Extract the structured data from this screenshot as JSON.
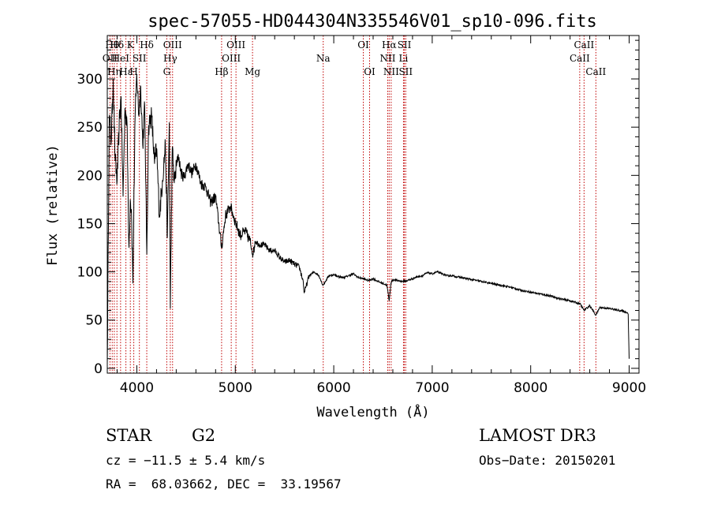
{
  "chart_data": {
    "type": "line",
    "title": "spec-57055-HD044304N335546V01_sp10-096.fits",
    "xlabel": "Wavelength (Å)",
    "ylabel": "Flux (relative)",
    "xlim": [
      3700,
      9100
    ],
    "ylim": [
      -5,
      345
    ],
    "xticks": [
      4000,
      5000,
      6000,
      7000,
      8000,
      9000
    ],
    "yticks": [
      0,
      50,
      100,
      150,
      200,
      250,
      300
    ],
    "grid": false,
    "series": [
      {
        "name": "Flux",
        "x": [
          3700,
          3720,
          3740,
          3760,
          3780,
          3800,
          3820,
          3840,
          3860,
          3880,
          3900,
          3920,
          3933,
          3945,
          3960,
          3968,
          3980,
          4000,
          4020,
          4040,
          4060,
          4080,
          4101,
          4120,
          4150,
          4180,
          4200,
          4230,
          4260,
          4290,
          4310,
          4330,
          4340,
          4360,
          4380,
          4420,
          4450,
          4480,
          4520,
          4560,
          4600,
          4650,
          4700,
          4750,
          4800,
          4861,
          4900,
          4950,
          5000,
          5050,
          5100,
          5150,
          5183,
          5200,
          5250,
          5300,
          5350,
          5400,
          5450,
          5500,
          5550,
          5600,
          5650,
          5690,
          5700,
          5720,
          5750,
          5800,
          5850,
          5890,
          5950,
          6000,
          6050,
          6100,
          6150,
          6200,
          6250,
          6300,
          6350,
          6400,
          6450,
          6500,
          6540,
          6563,
          6580,
          6600,
          6650,
          6700,
          6750,
          6800,
          6850,
          6900,
          6950,
          7000,
          7050,
          7100,
          7150,
          7200,
          7300,
          7400,
          7500,
          7600,
          7700,
          7800,
          7900,
          8000,
          8100,
          8200,
          8300,
          8400,
          8500,
          8542,
          8600,
          8662,
          8700,
          8800,
          8900,
          8980,
          8990,
          9000
        ],
        "values": [
          5,
          260,
          235,
          300,
          215,
          195,
          250,
          282,
          178,
          270,
          255,
          125,
          175,
          165,
          88,
          150,
          250,
          305,
          262,
          292,
          232,
          272,
          118,
          252,
          262,
          212,
          228,
          158,
          195,
          232,
          135,
          255,
          62,
          228,
          192,
          222,
          202,
          198,
          212,
          202,
          212,
          192,
          188,
          172,
          178,
          125,
          158,
          168,
          152,
          138,
          142,
          132,
          118,
          132,
          128,
          128,
          122,
          122,
          115,
          110,
          112,
          108,
          105,
          90,
          78,
          85,
          96,
          100,
          96,
          86,
          96,
          97,
          95,
          94,
          96,
          98,
          94,
          93,
          91,
          93,
          90,
          88,
          86,
          70,
          88,
          92,
          91,
          90,
          91,
          93,
          95,
          96,
          99,
          98,
          100,
          98,
          96,
          96,
          94,
          92,
          90,
          88,
          86,
          84,
          81,
          79,
          77,
          75,
          72,
          70,
          67,
          60,
          65,
          55,
          63,
          62,
          60,
          58,
          56,
          10
        ]
      }
    ],
    "line_markers": [
      {
        "w": 3727,
        "label": "OII",
        "row": 2
      },
      {
        "w": 3750,
        "label": "Hθ",
        "row": 1
      },
      {
        "w": 3771,
        "label": "Hη",
        "row": 3
      },
      {
        "w": 3798,
        "label": "Hδ",
        "row": 1
      },
      {
        "w": 3835,
        "label": "HeI",
        "row": 2
      },
      {
        "w": 3889,
        "label": "Hε",
        "row": 3
      },
      {
        "w": 3934,
        "label": "K",
        "row": 1
      },
      {
        "w": 3969,
        "label": "H",
        "row": 3
      },
      {
        "w": 4026,
        "label": "SII",
        "row": 2
      },
      {
        "w": 4101,
        "label": "Hδ",
        "row": 1
      },
      {
        "w": 4304,
        "label": "G",
        "row": 3
      },
      {
        "w": 4340,
        "label": "Hγ",
        "row": 2
      },
      {
        "w": 4363,
        "label": "OIII",
        "row": 1
      },
      {
        "w": 4861,
        "label": "Hβ",
        "row": 3
      },
      {
        "w": 4959,
        "label": "OIII",
        "row": 2
      },
      {
        "w": 5007,
        "label": "OIII",
        "row": 1
      },
      {
        "w": 5175,
        "label": "Mg",
        "row": 3
      },
      {
        "w": 5893,
        "label": "Na",
        "row": 2
      },
      {
        "w": 6300,
        "label": "OI",
        "row": 1
      },
      {
        "w": 6364,
        "label": "OI",
        "row": 3
      },
      {
        "w": 6548,
        "label": "NII",
        "row": 2
      },
      {
        "w": 6563,
        "label": "Hα",
        "row": 1
      },
      {
        "w": 6583,
        "label": "NII",
        "row": 3
      },
      {
        "w": 6708,
        "label": "Li",
        "row": 2
      },
      {
        "w": 6717,
        "label": "SII",
        "row": 1
      },
      {
        "w": 6731,
        "label": "SII",
        "row": 3
      },
      {
        "w": 8498,
        "label": "CaII",
        "row": 2
      },
      {
        "w": 8542,
        "label": "CaII",
        "row": 1
      },
      {
        "w": 8662,
        "label": "CaII",
        "row": 3
      }
    ]
  },
  "info": {
    "object_class": "STAR",
    "subclass": "G2",
    "survey": "LAMOST DR3",
    "cz": "cz = −11.5 ± 5.4 km/s",
    "obs_date": "Obs−Date: 20150201",
    "ra_dec": "RA =  68.03662, DEC =  33.19567"
  }
}
